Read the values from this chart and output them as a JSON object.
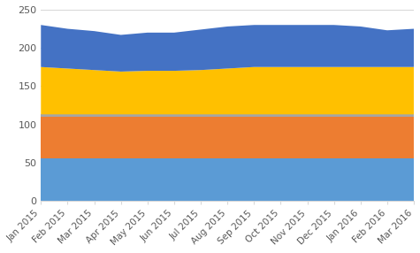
{
  "months": [
    "Jan 2015",
    "Feb 2015",
    "Mar 2015",
    "Apr 2015",
    "May 2015",
    "Jun 2015",
    "Jul 2015",
    "Aug 2015",
    "Sep 2015",
    "Oct 2015",
    "Nov 2015",
    "Dec 2015",
    "Jan 2016",
    "Feb 2016",
    "Mar 2016"
  ],
  "layer1": [
    55,
    55,
    55,
    55,
    55,
    55,
    55,
    55,
    55,
    55,
    55,
    55,
    55,
    55,
    55
  ],
  "layer2": [
    55,
    55,
    55,
    55,
    55,
    55,
    55,
    55,
    55,
    55,
    55,
    55,
    55,
    55,
    55
  ],
  "layer3": [
    3,
    3,
    3,
    3,
    3,
    3,
    3,
    3,
    3,
    3,
    3,
    3,
    3,
    3,
    3
  ],
  "layer4": [
    62,
    60,
    58,
    56,
    57,
    57,
    58,
    60,
    62,
    62,
    62,
    62,
    62,
    62,
    62
  ],
  "layer5": [
    55,
    52,
    51,
    48,
    50,
    50,
    53,
    55,
    55,
    55,
    55,
    55,
    53,
    48,
    50
  ],
  "color1": "#5B9BD5",
  "color2": "#ED7D31",
  "color3": "#A5A5A5",
  "color4": "#FFC000",
  "color5": "#4472C4",
  "ylim": [
    0,
    250
  ],
  "yticks": [
    0,
    50,
    100,
    150,
    200,
    250
  ],
  "bg_color": "#FFFFFF",
  "grid_color": "#D9D9D9"
}
